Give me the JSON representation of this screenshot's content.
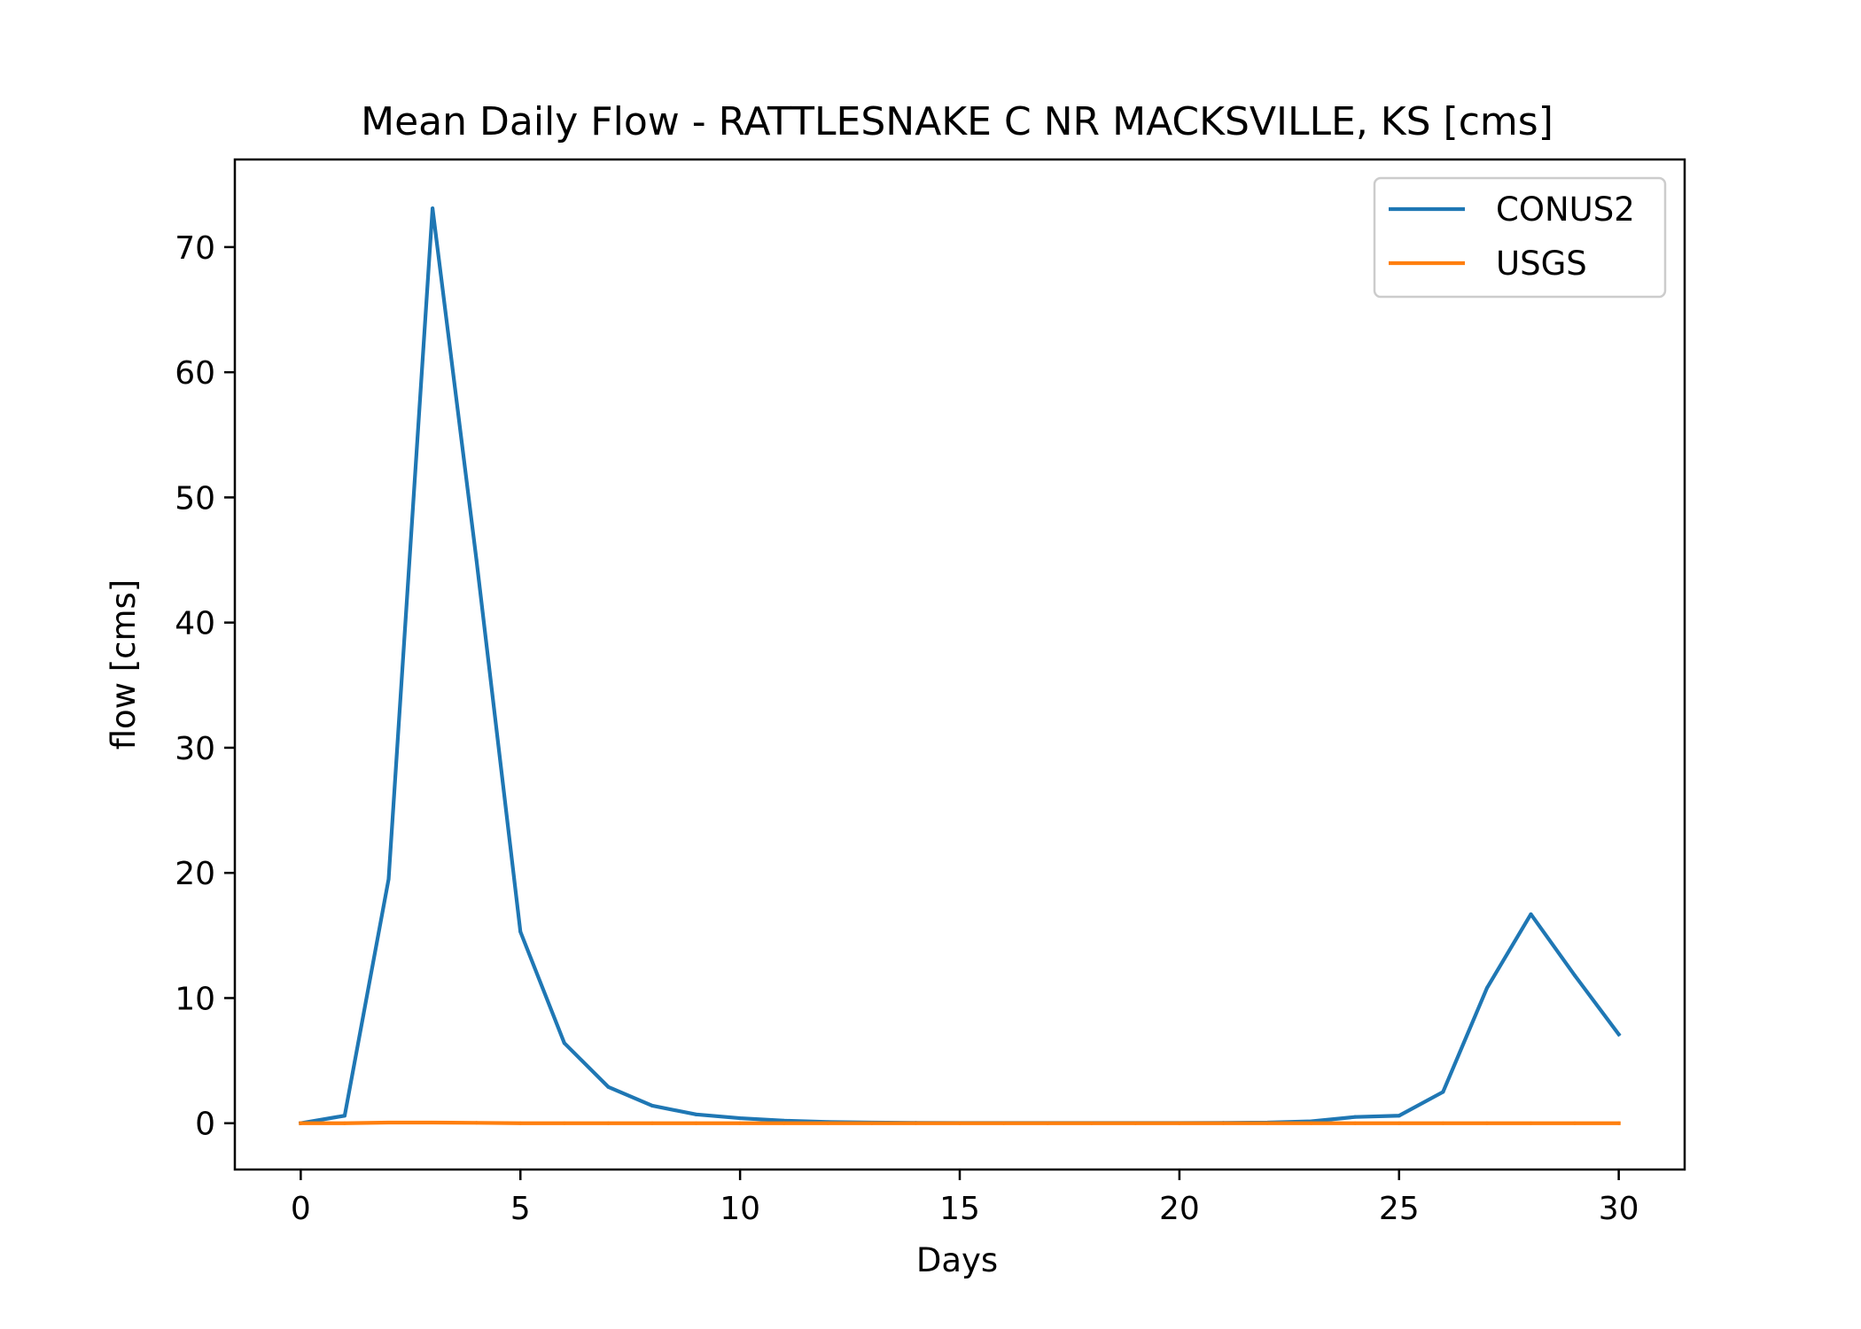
{
  "chart_data": {
    "type": "line",
    "title": "Mean Daily Flow - RATTLESNAKE C NR MACKSVILLE, KS [cms]",
    "xlabel": "Days",
    "ylabel": "flow [cms]",
    "xlim": [
      -1.5,
      31.5
    ],
    "ylim": [
      -3.7,
      77.0
    ],
    "xticks": [
      0,
      5,
      10,
      15,
      20,
      25,
      30
    ],
    "yticks": [
      0,
      10,
      20,
      30,
      40,
      50,
      60,
      70
    ],
    "grid": false,
    "legend_position": "upper right",
    "x": [
      0,
      1,
      2,
      3,
      4,
      5,
      6,
      7,
      8,
      9,
      10,
      11,
      12,
      13,
      14,
      15,
      16,
      17,
      18,
      19,
      20,
      21,
      22,
      23,
      24,
      25,
      26,
      27,
      28,
      29,
      30
    ],
    "series": [
      {
        "name": "CONUS2",
        "color": "#1f77b4",
        "values": [
          0.0,
          0.6,
          19.5,
          73.1,
          45.0,
          15.3,
          6.4,
          2.9,
          1.4,
          0.7,
          0.4,
          0.2,
          0.1,
          0.05,
          0.03,
          0.02,
          0.02,
          0.02,
          0.02,
          0.02,
          0.02,
          0.03,
          0.05,
          0.15,
          0.5,
          0.6,
          2.5,
          10.8,
          16.7,
          11.8,
          7.1
        ]
      },
      {
        "name": "USGS",
        "color": "#ff7f0e",
        "values": [
          0.0,
          0.0,
          0.05,
          0.05,
          0.03,
          0.0,
          0.0,
          0.0,
          0.0,
          0.0,
          0.0,
          0.0,
          0.0,
          0.0,
          0.0,
          0.0,
          0.0,
          0.0,
          0.0,
          0.0,
          0.0,
          0.0,
          0.0,
          0.0,
          0.0,
          0.0,
          0.0,
          0.0,
          0.0,
          0.0,
          0.0
        ]
      }
    ]
  }
}
